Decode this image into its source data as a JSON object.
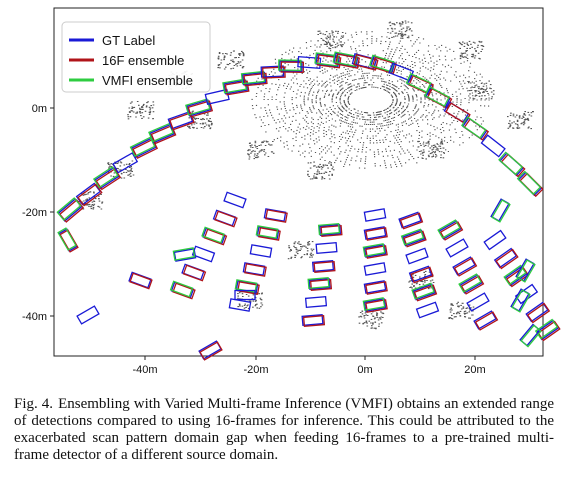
{
  "figure": {
    "legend": [
      {
        "label": "GT Label",
        "color": "#1a1ad6"
      },
      {
        "label": "16F ensemble",
        "color": "#b0141a"
      },
      {
        "label": "VMFI ensemble",
        "color": "#2ecc40"
      }
    ],
    "x_ticks": [
      "-40m",
      "-20m",
      "0m",
      "20m"
    ],
    "y_ticks": [
      "0m",
      "-20m",
      "-40m"
    ]
  },
  "caption": {
    "label": "Fig. 4.",
    "text": "Ensembling with Varied Multi-frame Inference (VMFI) obtains an extended range of detections compared to using 16-frames for inference. This could be attributed to the exacerbated scan pattern domain gap when feeding 16-frames to a pre-trained multi-frame detector of a different source domain."
  }
}
